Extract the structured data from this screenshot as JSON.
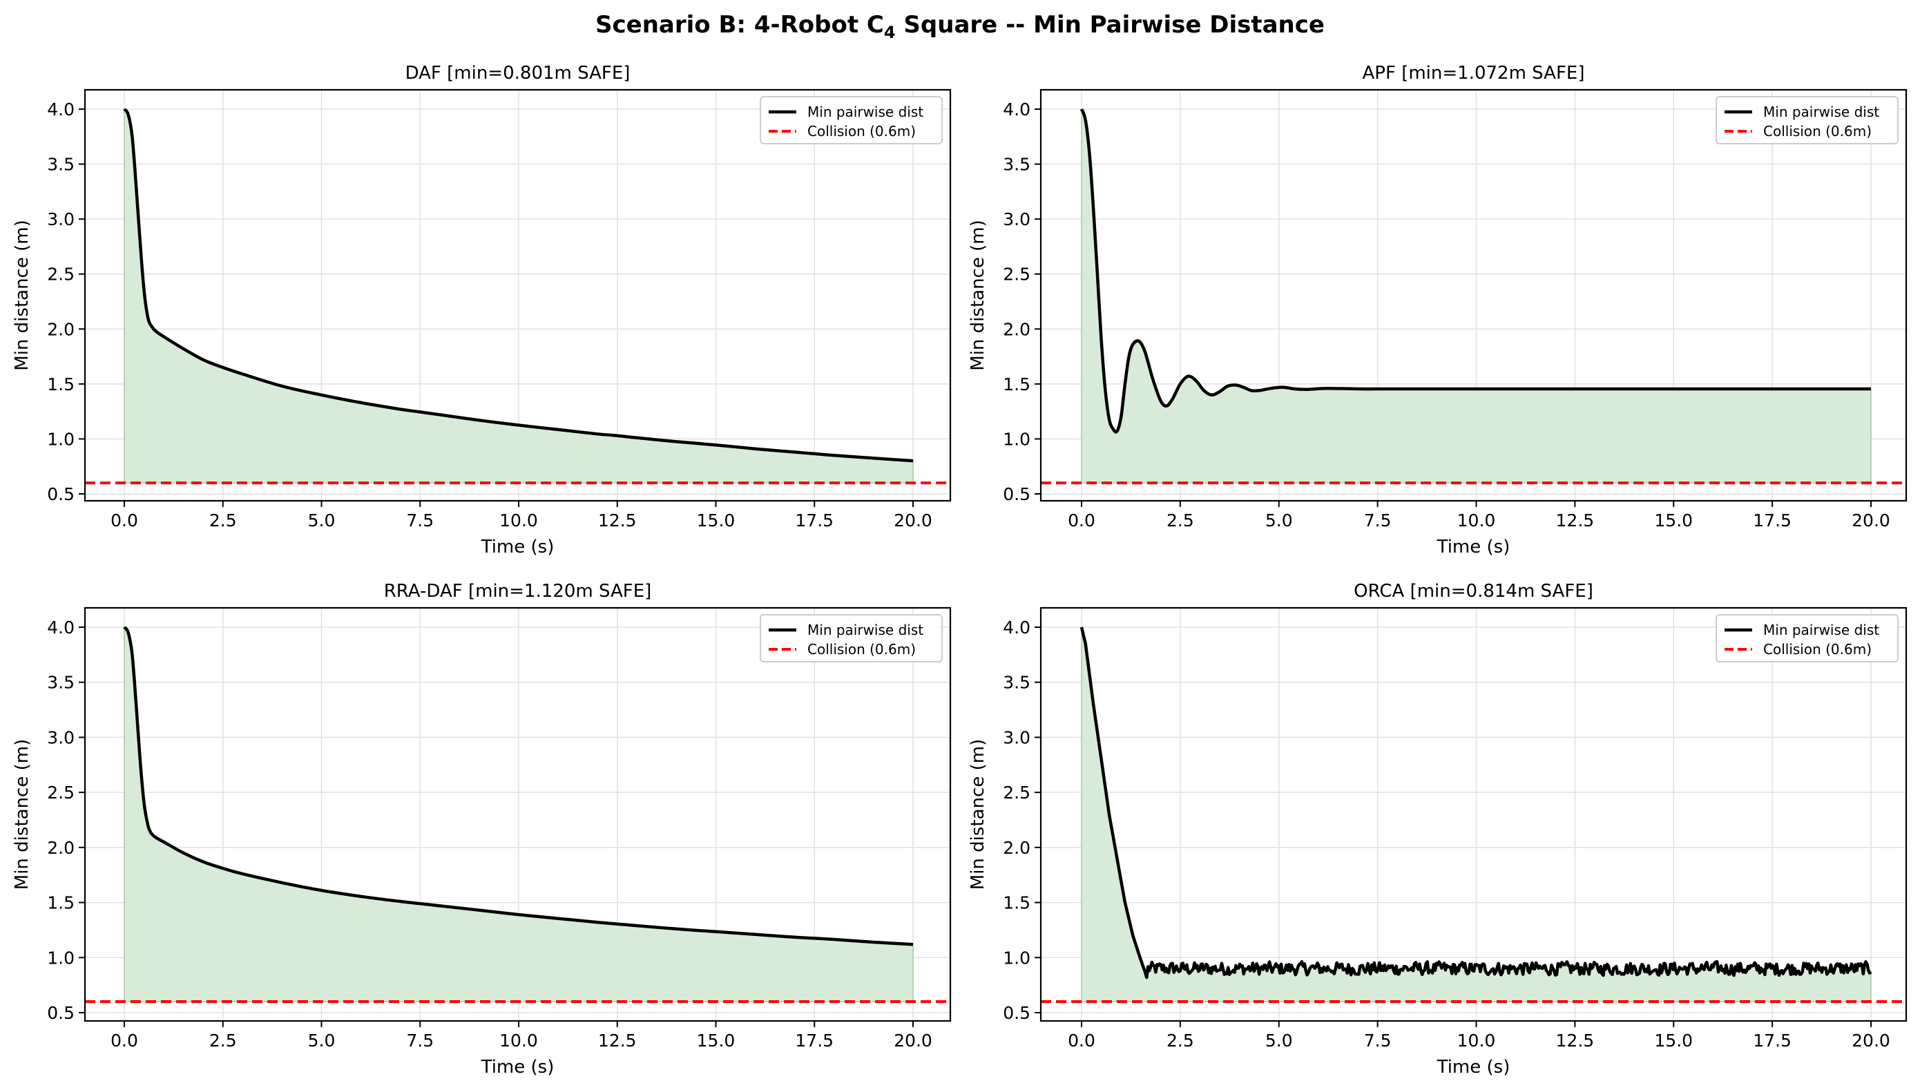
{
  "figure": {
    "title_prefix": "Scenario B: 4-Robot C",
    "title_subscript": "4",
    "title_suffix": " Square -- Min Pairwise Distance"
  },
  "colors": {
    "line": "#000000",
    "collision": "#ff0000",
    "fill": "#d8ebd8",
    "fill_edge": "#a9c9a9",
    "grid": "#e0e0e0",
    "legend_border": "#cccccc"
  },
  "legend": {
    "line_label": "Min pairwise dist",
    "collision_label": "Collision (0.6m)"
  },
  "chart_data": [
    {
      "type": "area",
      "panel": "top-left",
      "title": "DAF  [min=0.801m SAFE]",
      "xlabel": "Time (s)",
      "ylabel": "Min distance (m)",
      "xlim": [
        -1,
        21
      ],
      "ylim": [
        0.43,
        4.18
      ],
      "xticks": [
        "0.0",
        "2.5",
        "5.0",
        "7.5",
        "10.0",
        "12.5",
        "15.0",
        "17.5",
        "20.0"
      ],
      "yticks": [
        "0.5",
        "1.0",
        "1.5",
        "2.0",
        "2.5",
        "3.0",
        "3.5",
        "4.0"
      ],
      "grid": true,
      "legend_position": "upper right",
      "collision_threshold": 0.6,
      "min_value": 0.801,
      "status": "SAFE",
      "x": [
        0,
        0.1,
        0.2,
        0.3,
        0.4,
        0.5,
        0.6,
        0.7,
        0.8,
        1.0,
        1.5,
        2.0,
        2.5,
        3.0,
        4.0,
        5.0,
        6.0,
        7.0,
        7.5,
        8.0,
        9.0,
        10.0,
        11.0,
        12.0,
        12.5,
        13.0,
        14.0,
        15.0,
        16.0,
        17.0,
        17.5,
        18.0,
        19.0,
        20.0
      ],
      "values": [
        4.0,
        3.95,
        3.75,
        3.3,
        2.8,
        2.35,
        2.1,
        2.02,
        1.98,
        1.93,
        1.82,
        1.72,
        1.65,
        1.59,
        1.48,
        1.4,
        1.33,
        1.27,
        1.245,
        1.22,
        1.17,
        1.125,
        1.085,
        1.045,
        1.03,
        1.01,
        0.975,
        0.945,
        0.91,
        0.88,
        0.865,
        0.85,
        0.825,
        0.801
      ],
      "series_names": [
        "Min pairwise dist",
        "Collision (0.6m)"
      ]
    },
    {
      "type": "area",
      "panel": "top-right",
      "title": "APF  [min=1.072m SAFE]",
      "xlabel": "Time (s)",
      "ylabel": "Min distance (m)",
      "xlim": [
        -1,
        21
      ],
      "ylim": [
        0.43,
        4.18
      ],
      "xticks": [
        "0.0",
        "2.5",
        "5.0",
        "7.5",
        "10.0",
        "12.5",
        "15.0",
        "17.5",
        "20.0"
      ],
      "yticks": [
        "0.5",
        "1.0",
        "1.5",
        "2.0",
        "2.5",
        "3.0",
        "3.5",
        "4.0"
      ],
      "grid": true,
      "legend_position": "upper right",
      "collision_threshold": 0.6,
      "min_value": 1.072,
      "status": "SAFE",
      "x": [
        0,
        0.1,
        0.2,
        0.3,
        0.4,
        0.5,
        0.6,
        0.7,
        0.8,
        0.9,
        1.0,
        1.1,
        1.2,
        1.3,
        1.45,
        1.6,
        1.8,
        2.0,
        2.15,
        2.3,
        2.5,
        2.7,
        2.9,
        3.1,
        3.3,
        3.5,
        3.7,
        3.9,
        4.1,
        4.3,
        4.5,
        4.8,
        5.1,
        5.4,
        5.7,
        6.2,
        7.0,
        8.0,
        10.0,
        15.0,
        20.0
      ],
      "values": [
        4.0,
        3.9,
        3.6,
        3.1,
        2.5,
        1.9,
        1.45,
        1.18,
        1.09,
        1.07,
        1.2,
        1.5,
        1.75,
        1.86,
        1.89,
        1.8,
        1.55,
        1.35,
        1.3,
        1.36,
        1.5,
        1.57,
        1.53,
        1.44,
        1.4,
        1.43,
        1.48,
        1.49,
        1.47,
        1.44,
        1.44,
        1.46,
        1.47,
        1.455,
        1.45,
        1.46,
        1.455,
        1.455,
        1.455,
        1.455,
        1.455
      ],
      "series_names": [
        "Min pairwise dist",
        "Collision (0.6m)"
      ]
    },
    {
      "type": "area",
      "panel": "bottom-left",
      "title": "RRA-DAF  [min=1.120m SAFE]",
      "xlabel": "Time (s)",
      "ylabel": "Min distance (m)",
      "xlim": [
        -1,
        21
      ],
      "ylim": [
        0.43,
        4.18
      ],
      "xticks": [
        "0.0",
        "2.5",
        "5.0",
        "7.5",
        "10.0",
        "12.5",
        "15.0",
        "17.5",
        "20.0"
      ],
      "yticks": [
        "0.5",
        "1.0",
        "1.5",
        "2.0",
        "2.5",
        "3.0",
        "3.5",
        "4.0"
      ],
      "grid": true,
      "legend_position": "upper right",
      "collision_threshold": 0.6,
      "min_value": 1.12,
      "status": "SAFE",
      "x": [
        0,
        0.1,
        0.2,
        0.3,
        0.4,
        0.5,
        0.6,
        0.65,
        0.7,
        0.8,
        1.0,
        1.5,
        2.0,
        2.5,
        3.0,
        4.0,
        5.0,
        6.0,
        7.0,
        7.5,
        8.0,
        9.0,
        10.0,
        11.0,
        12.0,
        12.5,
        13.0,
        14.0,
        15.0,
        16.0,
        17.0,
        17.5,
        18.0,
        19.0,
        20.0
      ],
      "values": [
        4.0,
        3.95,
        3.75,
        3.3,
        2.8,
        2.4,
        2.2,
        2.15,
        2.12,
        2.09,
        2.05,
        1.95,
        1.87,
        1.81,
        1.76,
        1.68,
        1.61,
        1.555,
        1.51,
        1.49,
        1.47,
        1.43,
        1.39,
        1.355,
        1.32,
        1.305,
        1.29,
        1.26,
        1.235,
        1.21,
        1.185,
        1.175,
        1.165,
        1.14,
        1.12
      ],
      "series_names": [
        "Min pairwise dist",
        "Collision (0.6m)"
      ]
    },
    {
      "type": "area",
      "panel": "bottom-right",
      "title": "ORCA  [min=0.814m SAFE]",
      "xlabel": "Time (s)",
      "ylabel": "Min distance (m)",
      "xlim": [
        -1,
        21
      ],
      "ylim": [
        0.43,
        4.18
      ],
      "xticks": [
        "0.0",
        "2.5",
        "5.0",
        "7.5",
        "10.0",
        "12.5",
        "15.0",
        "17.5",
        "20.0"
      ],
      "yticks": [
        "0.5",
        "1.0",
        "1.5",
        "2.0",
        "2.5",
        "3.0",
        "3.5",
        "4.0"
      ],
      "grid": true,
      "legend_position": "upper right",
      "collision_threshold": 0.6,
      "min_value": 0.814,
      "status": "SAFE",
      "x": [
        0,
        0.1,
        0.3,
        0.5,
        0.7,
        0.9,
        1.1,
        1.3,
        1.5,
        1.6,
        1.65
      ],
      "values": [
        4.0,
        3.85,
        3.3,
        2.8,
        2.3,
        1.9,
        1.5,
        1.2,
        0.98,
        0.88,
        0.82
      ],
      "steady_state": {
        "x_start": 1.65,
        "x_end": 20.0,
        "mean": 0.9,
        "noise_amplitude": 0.08,
        "peak_max": 1.02,
        "trough_min": 0.814,
        "end_value": 0.87
      },
      "series_names": [
        "Min pairwise dist",
        "Collision (0.6m)"
      ]
    }
  ]
}
